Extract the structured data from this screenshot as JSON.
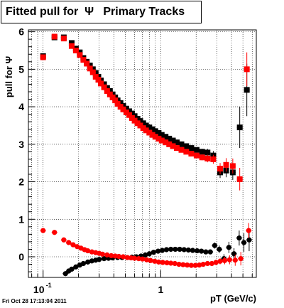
{
  "title": "Fitted pull for  Ψ   Primary Tracks",
  "footer": "Fri Oct 28 17:13:04 2011",
  "chart_data": {
    "type": "scatter",
    "title": "Fitted pull for  Ψ   Primary Tracks",
    "xlabel": "pT (GeV/c)",
    "ylabel": "pull for Ψ",
    "xscale": "log",
    "xlim": [
      0.075,
      6.5
    ],
    "ylim": [
      -0.55,
      6.05
    ],
    "xticks": [
      {
        "v": 0.1,
        "label": "10",
        "sup": "-1"
      },
      {
        "v": 1,
        "label": "1",
        "sup": ""
      }
    ],
    "yticks": [
      0,
      1,
      2,
      3,
      4,
      5,
      6
    ],
    "grid": true,
    "colors": {
      "black": "#000000",
      "red": "#ff0000"
    },
    "series": [
      {
        "color": "#000000",
        "marker": "square",
        "x": [
          0.1,
          0.125,
          0.15,
          0.175,
          0.19,
          0.205,
          0.22,
          0.235,
          0.25,
          0.265,
          0.28,
          0.295,
          0.31,
          0.33,
          0.35,
          0.37,
          0.39,
          0.41,
          0.43,
          0.455,
          0.48,
          0.51,
          0.54,
          0.57,
          0.6,
          0.635,
          0.67,
          0.71,
          0.75,
          0.8,
          0.85,
          0.9,
          0.96,
          1.02,
          1.1,
          1.18,
          1.27,
          1.37,
          1.5,
          1.65,
          1.82,
          2.02,
          2.25,
          2.5,
          2.8,
          3.2,
          3.6,
          4.1,
          4.7,
          5.4
        ],
        "y": [
          5.35,
          5.85,
          5.85,
          5.7,
          5.55,
          5.45,
          5.3,
          5.2,
          5.1,
          5.0,
          4.9,
          4.8,
          4.7,
          4.6,
          4.5,
          4.42,
          4.33,
          4.25,
          4.17,
          4.1,
          4.02,
          3.95,
          3.88,
          3.82,
          3.75,
          3.68,
          3.62,
          3.56,
          3.5,
          3.45,
          3.4,
          3.35,
          3.3,
          3.25,
          3.2,
          3.15,
          3.1,
          3.05,
          3.0,
          2.95,
          2.9,
          2.85,
          2.8,
          2.78,
          2.7,
          2.25,
          2.3,
          2.25,
          3.45,
          4.45
        ],
        "yerr": [
          0.03,
          0.03,
          0.03,
          0.02,
          0.02,
          0.02,
          0.02,
          0.02,
          0.02,
          0.02,
          0.02,
          0.02,
          0.02,
          0.02,
          0.02,
          0.02,
          0.02,
          0.02,
          0.02,
          0.02,
          0.02,
          0.02,
          0.02,
          0.02,
          0.02,
          0.02,
          0.02,
          0.02,
          0.02,
          0.02,
          0.02,
          0.02,
          0.02,
          0.03,
          0.03,
          0.03,
          0.03,
          0.04,
          0.04,
          0.05,
          0.06,
          0.07,
          0.08,
          0.1,
          0.12,
          0.15,
          0.18,
          0.2,
          0.55,
          0.7
        ]
      },
      {
        "color": "#ff0000",
        "marker": "square",
        "x": [
          0.1,
          0.125,
          0.15,
          0.175,
          0.19,
          0.205,
          0.22,
          0.235,
          0.25,
          0.265,
          0.28,
          0.295,
          0.31,
          0.33,
          0.35,
          0.37,
          0.39,
          0.41,
          0.43,
          0.455,
          0.48,
          0.51,
          0.54,
          0.57,
          0.6,
          0.635,
          0.67,
          0.71,
          0.75,
          0.8,
          0.85,
          0.9,
          0.96,
          1.02,
          1.1,
          1.18,
          1.27,
          1.37,
          1.5,
          1.65,
          1.82,
          2.02,
          2.25,
          2.5,
          2.8,
          3.2,
          3.6,
          4.1,
          4.7,
          5.4
        ],
        "y": [
          5.32,
          5.87,
          5.82,
          5.62,
          5.5,
          5.38,
          5.25,
          5.15,
          5.02,
          4.92,
          4.8,
          4.72,
          4.62,
          4.52,
          4.42,
          4.33,
          4.25,
          4.17,
          4.08,
          4.0,
          3.93,
          3.85,
          3.78,
          3.7,
          3.63,
          3.56,
          3.5,
          3.43,
          3.37,
          3.31,
          3.25,
          3.2,
          3.15,
          3.1,
          3.05,
          3.0,
          2.95,
          2.9,
          2.85,
          2.8,
          2.75,
          2.7,
          2.65,
          2.62,
          2.6,
          2.35,
          2.45,
          2.42,
          2.07,
          5.0
        ],
        "yerr": [
          0.03,
          0.03,
          0.03,
          0.02,
          0.02,
          0.02,
          0.02,
          0.02,
          0.02,
          0.02,
          0.02,
          0.02,
          0.02,
          0.02,
          0.02,
          0.02,
          0.02,
          0.02,
          0.02,
          0.02,
          0.02,
          0.02,
          0.02,
          0.02,
          0.02,
          0.02,
          0.02,
          0.02,
          0.02,
          0.02,
          0.02,
          0.02,
          0.02,
          0.03,
          0.03,
          0.03,
          0.03,
          0.04,
          0.04,
          0.05,
          0.06,
          0.07,
          0.08,
          0.1,
          0.12,
          0.15,
          0.18,
          0.2,
          0.3,
          0.45
        ]
      },
      {
        "color": "#000000",
        "marker": "circle",
        "x": [
          0.155,
          0.165,
          0.175,
          0.19,
          0.205,
          0.22,
          0.24,
          0.26,
          0.28,
          0.3,
          0.33,
          0.36,
          0.39,
          0.43,
          0.47,
          0.52,
          0.57,
          0.62,
          0.68,
          0.74,
          0.8,
          0.87,
          0.95,
          1.03,
          1.12,
          1.22,
          1.33,
          1.45,
          1.58,
          1.72,
          1.87,
          2.04,
          2.22,
          2.42,
          2.64,
          2.88,
          3.15,
          3.45,
          3.8,
          4.2,
          4.65,
          5.1,
          5.65
        ],
        "y": [
          -0.45,
          -0.38,
          -0.33,
          -0.27,
          -0.22,
          -0.18,
          -0.14,
          -0.11,
          -0.09,
          -0.07,
          -0.05,
          -0.04,
          -0.03,
          -0.02,
          -0.02,
          -0.02,
          -0.01,
          0.0,
          0.02,
          0.05,
          0.08,
          0.12,
          0.15,
          0.17,
          0.19,
          0.2,
          0.2,
          0.2,
          0.19,
          0.18,
          0.17,
          0.16,
          0.15,
          0.13,
          0.13,
          0.3,
          0.2,
          -0.05,
          0.25,
          0.08,
          0.5,
          0.38,
          0.45
        ],
        "yerr": [
          0.03,
          0.03,
          0.02,
          0.02,
          0.02,
          0.02,
          0.02,
          0.02,
          0.02,
          0.02,
          0.02,
          0.02,
          0.02,
          0.02,
          0.02,
          0.02,
          0.02,
          0.02,
          0.02,
          0.02,
          0.02,
          0.02,
          0.02,
          0.02,
          0.02,
          0.02,
          0.02,
          0.02,
          0.03,
          0.03,
          0.03,
          0.04,
          0.04,
          0.05,
          0.06,
          0.08,
          0.1,
          0.12,
          0.15,
          0.15,
          0.2,
          0.25,
          0.3
        ]
      },
      {
        "color": "#ff0000",
        "marker": "circle",
        "x": [
          0.1,
          0.125,
          0.15,
          0.165,
          0.18,
          0.195,
          0.21,
          0.225,
          0.24,
          0.26,
          0.28,
          0.3,
          0.32,
          0.35,
          0.38,
          0.41,
          0.44,
          0.48,
          0.52,
          0.56,
          0.6,
          0.65,
          0.7,
          0.76,
          0.82,
          0.89,
          0.96,
          1.04,
          1.13,
          1.22,
          1.32,
          1.43,
          1.55,
          1.68,
          1.82,
          1.97,
          2.13,
          2.3,
          2.5,
          2.72,
          2.95,
          3.2,
          3.5,
          3.85,
          4.3,
          4.8,
          5.6
        ],
        "y": [
          0.7,
          0.65,
          0.45,
          0.38,
          0.32,
          0.27,
          0.23,
          0.19,
          0.16,
          0.13,
          0.11,
          0.09,
          0.07,
          0.05,
          0.03,
          0.02,
          0.01,
          0.0,
          -0.02,
          -0.03,
          -0.04,
          -0.05,
          -0.06,
          -0.08,
          -0.1,
          -0.12,
          -0.14,
          -0.15,
          -0.16,
          -0.17,
          -0.18,
          -0.2,
          -0.21,
          -0.22,
          -0.23,
          -0.23,
          -0.22,
          -0.2,
          -0.18,
          -0.18,
          -0.15,
          -0.12,
          -0.1,
          -0.08,
          -0.09,
          -0.05,
          0.7
        ],
        "yerr": [
          0.03,
          0.03,
          0.03,
          0.02,
          0.02,
          0.02,
          0.02,
          0.02,
          0.02,
          0.02,
          0.02,
          0.02,
          0.02,
          0.02,
          0.02,
          0.02,
          0.02,
          0.02,
          0.02,
          0.02,
          0.02,
          0.02,
          0.02,
          0.02,
          0.02,
          0.02,
          0.02,
          0.02,
          0.02,
          0.02,
          0.02,
          0.02,
          0.02,
          0.03,
          0.03,
          0.03,
          0.04,
          0.04,
          0.05,
          0.06,
          0.07,
          0.08,
          0.1,
          0.12,
          0.15,
          0.18,
          0.2
        ]
      }
    ]
  }
}
